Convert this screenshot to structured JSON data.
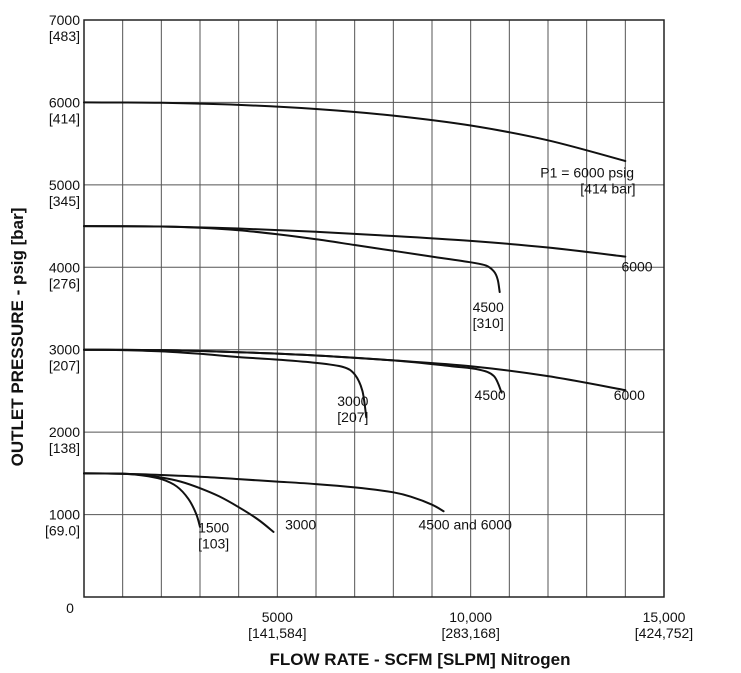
{
  "chart_data": {
    "type": "line",
    "xlabel": "FLOW RATE - SCFM [SLPM] Nitrogen",
    "ylabel": "OUTLET PRESSURE - psig [bar]",
    "xlim": [
      0,
      15000
    ],
    "ylim": [
      0,
      7000
    ],
    "grid": true,
    "x_ticks": [
      {
        "value": 5000,
        "label": "5000",
        "sublabel": "[141,584]"
      },
      {
        "value": 10000,
        "label": "10,000",
        "sublabel": "[283,168]"
      },
      {
        "value": 15000,
        "label": "15,000",
        "sublabel": "[424,752]"
      }
    ],
    "x_origin_label": "0",
    "y_ticks": [
      {
        "value": 1000,
        "label": "1000",
        "sublabel": "[69.0]"
      },
      {
        "value": 2000,
        "label": "2000",
        "sublabel": "[138]"
      },
      {
        "value": 3000,
        "label": "3000",
        "sublabel": "[207]"
      },
      {
        "value": 4000,
        "label": "4000",
        "sublabel": "[276]"
      },
      {
        "value": 5000,
        "label": "5000",
        "sublabel": "[345]"
      },
      {
        "value": 6000,
        "label": "6000",
        "sublabel": "[414]"
      },
      {
        "value": 7000,
        "label": "7000",
        "sublabel": "[483]"
      }
    ],
    "series": [
      {
        "set": 6000,
        "x": [
          0,
          2000,
          4000,
          6000,
          8000,
          10000,
          12000,
          14000
        ],
        "y": [
          6000,
          5995,
          5970,
          5920,
          5840,
          5720,
          5540,
          5290
        ]
      },
      {
        "set": 4500,
        "x": [
          0,
          2000,
          4000,
          6000,
          8000,
          10000,
          12000,
          14000
        ],
        "y": [
          4500,
          4495,
          4470,
          4430,
          4380,
          4320,
          4240,
          4130
        ]
      },
      {
        "set": 4500,
        "x": [
          0,
          2000,
          3000,
          4000,
          5000,
          6000,
          7000,
          8000,
          9000,
          10000,
          10400,
          10600,
          10700,
          10750
        ],
        "y": [
          4500,
          4495,
          4480,
          4450,
          4400,
          4340,
          4270,
          4200,
          4130,
          4060,
          4020,
          3950,
          3850,
          3700
        ]
      },
      {
        "set": 3000,
        "x": [
          0,
          2000,
          4000,
          6000,
          8000,
          10000,
          12000,
          14000
        ],
        "y": [
          3000,
          2995,
          2970,
          2930,
          2870,
          2800,
          2680,
          2510
        ]
      },
      {
        "set": 3000,
        "x": [
          0,
          2000,
          4000,
          6000,
          8000,
          9500,
          10200,
          10600,
          10800
        ],
        "y": [
          3000,
          2995,
          2970,
          2930,
          2870,
          2800,
          2760,
          2680,
          2480
        ]
      },
      {
        "set": 3000,
        "x": [
          0,
          1000,
          2000,
          3000,
          4000,
          5000,
          6000,
          6700,
          7000,
          7200,
          7300
        ],
        "y": [
          3000,
          2995,
          2980,
          2950,
          2910,
          2880,
          2840,
          2790,
          2700,
          2500,
          2180
        ]
      },
      {
        "set": 1500,
        "x": [
          0,
          1000,
          2000,
          3000,
          4000,
          5000,
          6000,
          7000,
          8000,
          8500,
          9000,
          9300
        ],
        "y": [
          1500,
          1495,
          1480,
          1460,
          1430,
          1400,
          1370,
          1330,
          1270,
          1210,
          1120,
          1040
        ]
      },
      {
        "set": 1500,
        "x": [
          0,
          1000,
          1500,
          2000,
          2500,
          3000,
          3500,
          4000,
          4500,
          4900
        ],
        "y": [
          1500,
          1495,
          1480,
          1450,
          1400,
          1320,
          1220,
          1090,
          940,
          790
        ]
      },
      {
        "set": 1500,
        "x": [
          0,
          1000,
          1500,
          2000,
          2400,
          2700,
          2900,
          3000
        ],
        "y": [
          1500,
          1495,
          1475,
          1430,
          1340,
          1190,
          1010,
          850
        ]
      }
    ],
    "curve_labels": [
      {
        "lines": [
          "P1 = 6000 psig",
          "[414 bar]"
        ],
        "x": 11800,
        "y": 5090
      },
      {
        "lines": [
          "6000"
        ],
        "x": 13900,
        "y": 3950
      },
      {
        "lines": [
          "4500",
          "[310]"
        ],
        "x": 10050,
        "y": 3460
      },
      {
        "lines": [
          "6000"
        ],
        "x": 13700,
        "y": 2390
      },
      {
        "lines": [
          "4500"
        ],
        "x": 10100,
        "y": 2390
      },
      {
        "lines": [
          "3000",
          "[207]"
        ],
        "x": 6550,
        "y": 2320
      },
      {
        "lines": [
          "4500 and 6000"
        ],
        "x": 8650,
        "y": 820
      },
      {
        "lines": [
          "3000"
        ],
        "x": 5200,
        "y": 820
      },
      {
        "lines": [
          "1500",
          "[103]"
        ],
        "x": 2950,
        "y": 780
      }
    ]
  }
}
